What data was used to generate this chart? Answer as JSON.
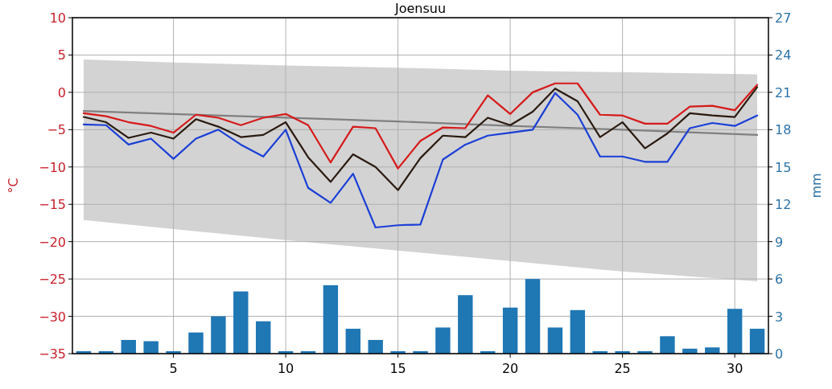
{
  "chart_data": {
    "type": "line",
    "title": "Joensuu",
    "ylabel": "°C",
    "y2label": "mm",
    "xlim": [
      0.5,
      31.5
    ],
    "xticks": [
      5,
      10,
      15,
      20,
      25,
      30
    ],
    "ylim": [
      -35,
      10
    ],
    "yticks": [
      -35,
      -30,
      -25,
      -20,
      -15,
      -10,
      -5,
      0,
      5,
      10
    ],
    "y2lim": [
      0,
      27
    ],
    "y2ticks": [
      0,
      3,
      6,
      9,
      12,
      15,
      18,
      21,
      24,
      27
    ],
    "grid": true,
    "series": [
      {
        "type": "bar",
        "axis": "y2",
        "color": "#1f77b4",
        "x": [
          1,
          2,
          3,
          4,
          5,
          6,
          7,
          8,
          9,
          10,
          11,
          12,
          13,
          14,
          15,
          16,
          17,
          18,
          19,
          20,
          21,
          22,
          23,
          24,
          25,
          26,
          27,
          28,
          29,
          30,
          31
        ],
        "values": [
          0.2,
          0.2,
          1.1,
          1.0,
          0.2,
          1.7,
          3.0,
          5.0,
          2.6,
          0.2,
          0.2,
          5.5,
          2.0,
          1.1,
          0.2,
          0.2,
          2.1,
          4.7,
          0.2,
          3.7,
          6.0,
          2.1,
          3.5,
          0.2,
          0.2,
          0.2,
          1.4,
          0.4,
          0.5,
          3.6,
          2.0
        ]
      },
      {
        "color": "#808080",
        "x": [
          1,
          5,
          10,
          15,
          20,
          25,
          31
        ],
        "values": [
          -2.5,
          -2.9,
          -3.4,
          -3.9,
          -4.5,
          -5.0,
          -5.7
        ],
        "lower": [
          -17.1,
          -18.3,
          -19.8,
          -21.2,
          -22.6,
          -24.0,
          -25.3
        ],
        "upper": [
          4.4,
          4.0,
          3.6,
          3.3,
          2.9,
          2.7,
          2.4
        ]
      },
      {
        "color": "#d61a1a",
        "x": [
          1,
          2,
          3,
          4,
          5,
          6,
          7,
          8,
          9,
          10,
          11,
          12,
          13,
          14,
          15,
          16,
          17,
          18,
          19,
          20,
          21,
          22,
          23,
          24,
          25,
          26,
          27,
          28,
          29,
          30,
          31
        ],
        "values": [
          -2.8,
          -3.2,
          -4.0,
          -4.5,
          -5.4,
          -3.0,
          -3.4,
          -4.4,
          -3.4,
          -2.9,
          -4.4,
          -9.4,
          -4.6,
          -4.8,
          -10.2,
          -6.5,
          -4.7,
          -4.8,
          -0.4,
          -2.9,
          0.0,
          1.2,
          1.2,
          -3.0,
          -3.1,
          -4.2,
          -4.2,
          -1.9,
          -1.8,
          -2.4,
          1.0
        ]
      },
      {
        "color": "#2b1a10",
        "x": [
          1,
          2,
          3,
          4,
          5,
          6,
          7,
          8,
          9,
          10,
          11,
          12,
          13,
          14,
          15,
          16,
          17,
          18,
          19,
          20,
          21,
          22,
          23,
          24,
          25,
          26,
          27,
          28,
          29,
          30,
          31
        ],
        "values": [
          -3.3,
          -4.0,
          -6.1,
          -5.4,
          -6.2,
          -3.6,
          -4.6,
          -6.0,
          -5.7,
          -4.0,
          -8.7,
          -12.0,
          -8.3,
          -10.0,
          -13.1,
          -8.8,
          -5.8,
          -6.0,
          -3.4,
          -4.4,
          -2.6,
          0.5,
          -1.2,
          -6.0,
          -4.0,
          -7.5,
          -5.5,
          -2.8,
          -3.1,
          -3.3,
          0.7
        ]
      },
      {
        "color": "#1a3fd6",
        "x": [
          1,
          2,
          3,
          4,
          5,
          6,
          7,
          8,
          9,
          10,
          11,
          12,
          13,
          14,
          15,
          16,
          17,
          18,
          19,
          20,
          21,
          22,
          23,
          24,
          25,
          26,
          27,
          28,
          29,
          30,
          31
        ],
        "values": [
          -4.3,
          -4.4,
          -7.0,
          -6.2,
          -8.9,
          -6.2,
          -5.0,
          -7.0,
          -8.6,
          -5.0,
          -12.8,
          -14.8,
          -10.9,
          -18.1,
          -17.8,
          -17.7,
          -9.0,
          -7.0,
          -5.8,
          -5.4,
          -5.0,
          -0.1,
          -3.0,
          -8.6,
          -8.6,
          -9.3,
          -9.3,
          -4.8,
          -4.1,
          -4.5,
          -3.1
        ]
      }
    ]
  }
}
